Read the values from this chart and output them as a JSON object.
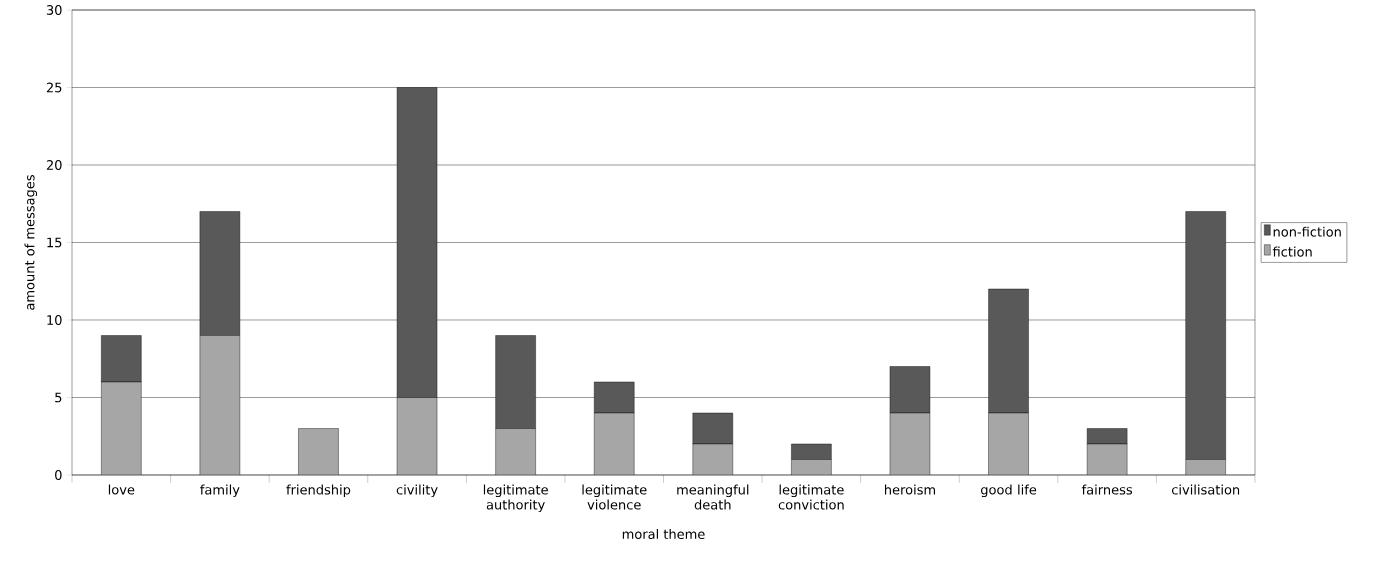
{
  "chart_data": {
    "type": "bar",
    "stacked": true,
    "xlabel": "moral theme",
    "ylabel": "amount of messages",
    "categories": [
      "love",
      "family",
      "friendship",
      "civility",
      "legitimate authority",
      "legitimate violence",
      "meaningful death",
      "legitimate conviction",
      "heroism",
      "good life",
      "fairness",
      "civilisation"
    ],
    "series": [
      {
        "name": "fiction",
        "color": "#a6a6a6",
        "values": [
          6,
          9,
          3,
          5,
          3,
          4,
          2,
          1,
          4,
          4,
          2,
          1
        ]
      },
      {
        "name": "non-fiction",
        "color": "#595959",
        "values": [
          3,
          8,
          0,
          20,
          6,
          2,
          2,
          1,
          3,
          8,
          1,
          16
        ]
      }
    ],
    "ylim": [
      0,
      30
    ],
    "yticks": [
      0,
      5,
      10,
      15,
      20,
      25,
      30
    ],
    "grid": "y",
    "legend": "right"
  }
}
